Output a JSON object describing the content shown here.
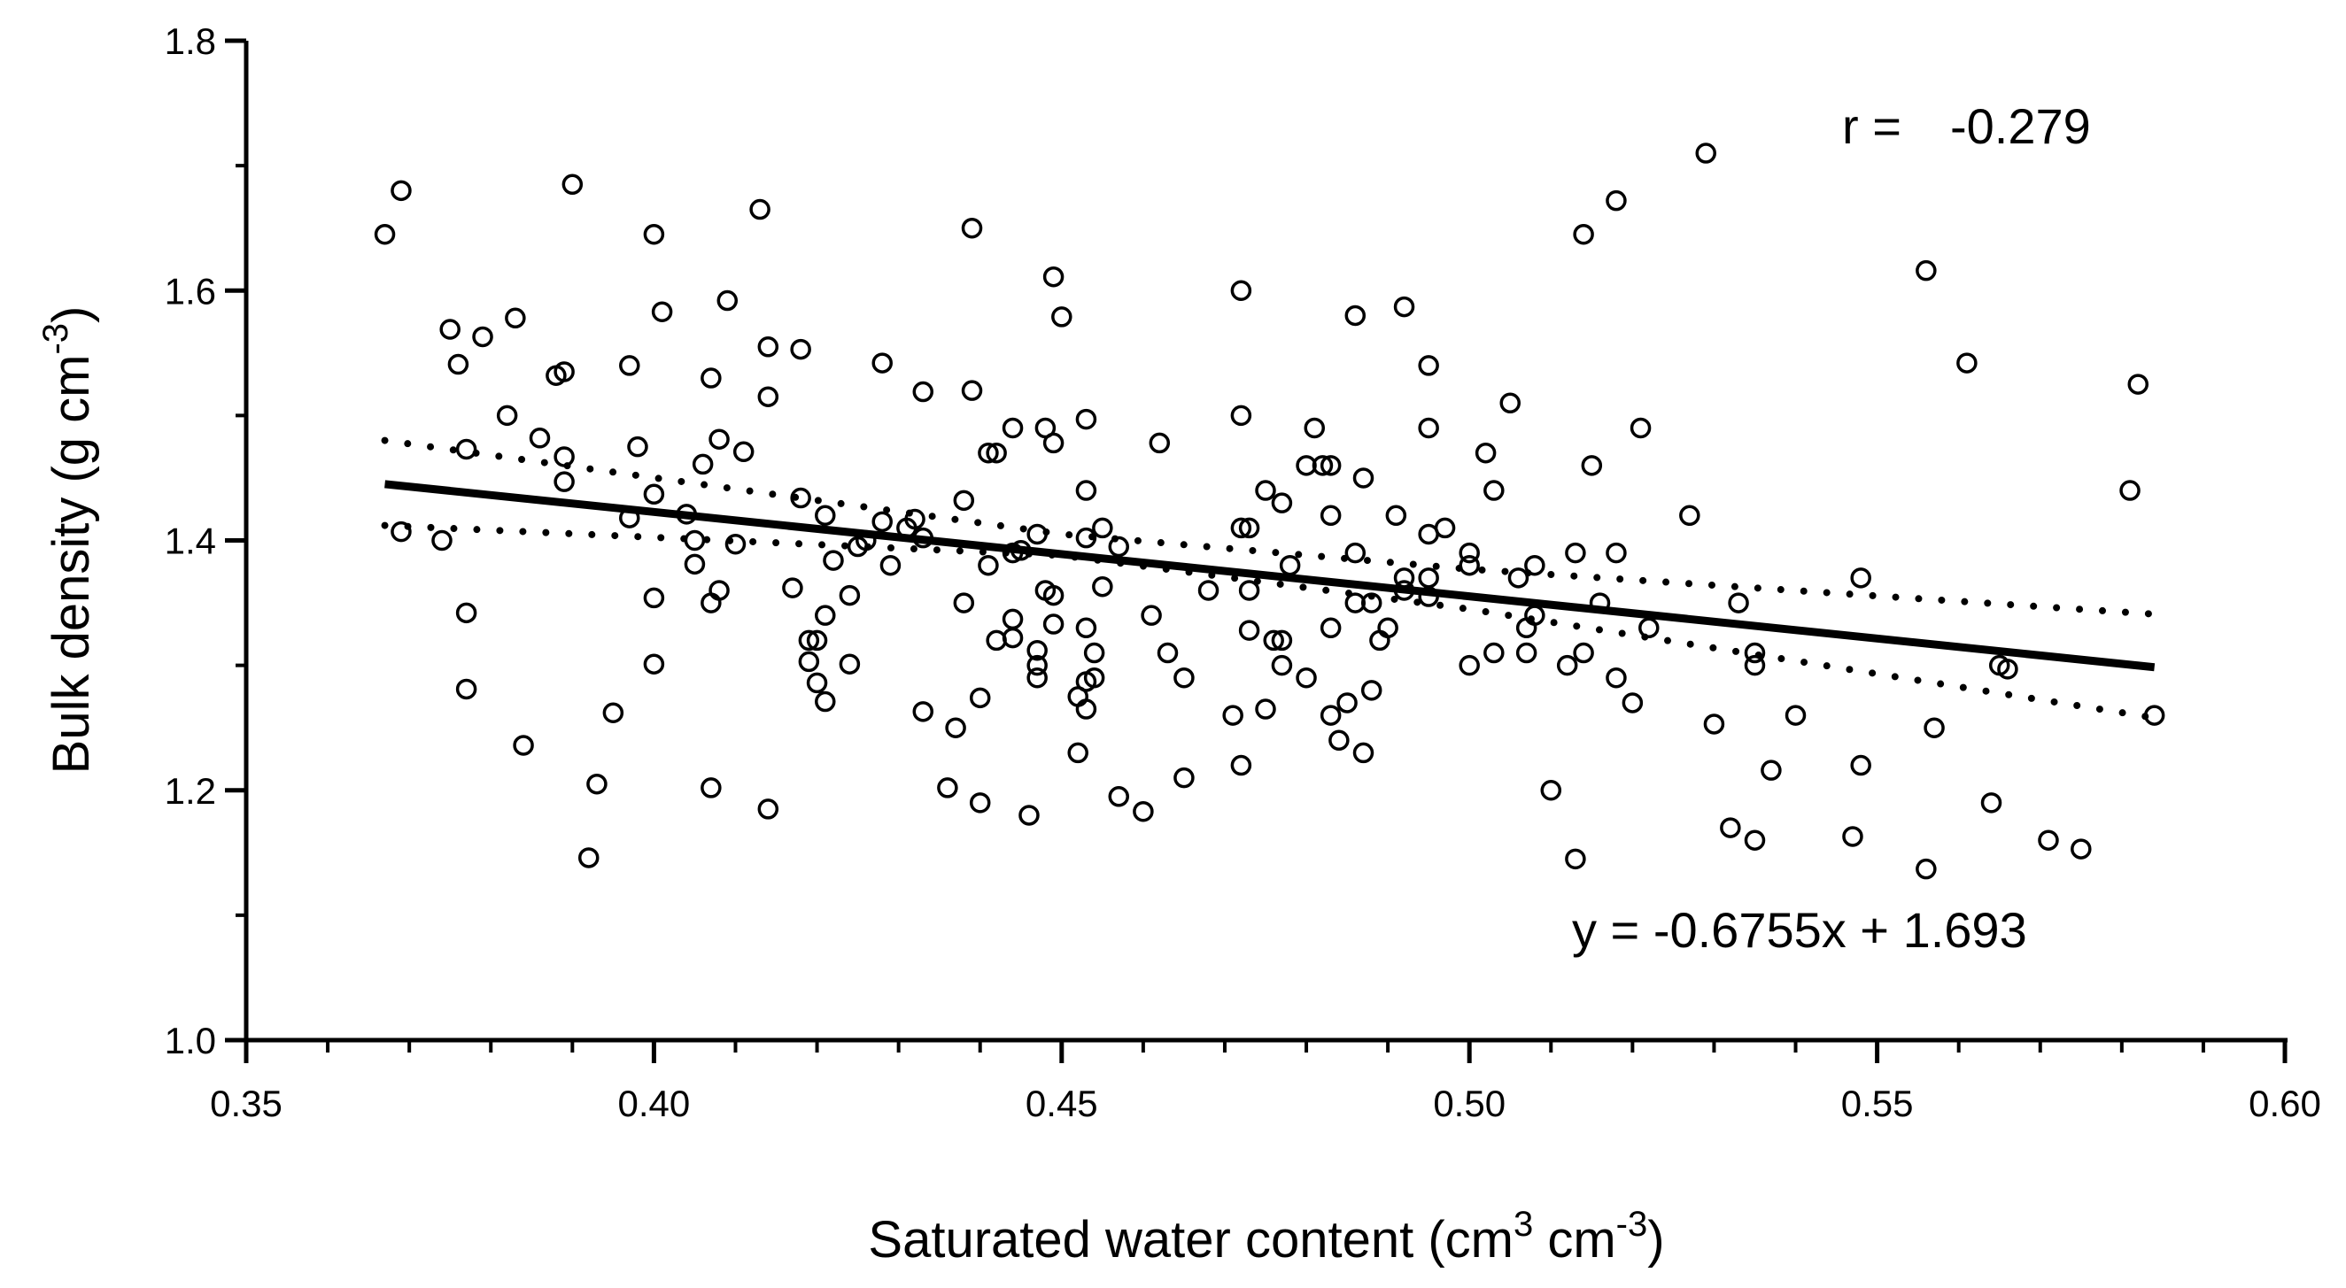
{
  "chart_data": {
    "type": "scatter",
    "xlabel": "Saturated water content (cm",
    "xlabel_sup1": "3",
    "xlabel_mid": " cm",
    "xlabel_sup2": "-3",
    "xlabel_end": ")",
    "ylabel": "Bulk density (g cm",
    "ylabel_sup": "-3",
    "ylabel_end": ")",
    "xlim": [
      0.35,
      0.6
    ],
    "ylim": [
      1.0,
      1.8
    ],
    "x_ticks": [
      0.35,
      0.4,
      0.45,
      0.5,
      0.55,
      0.6
    ],
    "x_tick_labels": [
      "0.35",
      "0.40",
      "0.45",
      "0.50",
      "0.55",
      "0.60"
    ],
    "y_ticks": [
      1.0,
      1.2,
      1.4,
      1.6,
      1.8
    ],
    "y_tick_labels": [
      "1.0",
      "1.2",
      "1.4",
      "1.6",
      "1.8"
    ],
    "grid": false,
    "r_label": "r =",
    "r_value": "-0.279",
    "equation": "y = -0.6755x + 1.693",
    "regression": {
      "slope": -0.6755,
      "intercept": 1.693,
      "x_range": [
        0.367,
        0.584
      ]
    },
    "confidence_band": {
      "upper": [
        [
          0.367,
          1.48
        ],
        [
          0.45,
          1.405
        ],
        [
          0.5,
          1.377
        ],
        [
          0.584,
          1.341
        ]
      ],
      "lower": [
        [
          0.367,
          1.412
        ],
        [
          0.45,
          1.388
        ],
        [
          0.5,
          1.345
        ],
        [
          0.584,
          1.258
        ]
      ]
    },
    "points": [
      [
        0.367,
        1.645
      ],
      [
        0.369,
        1.68
      ],
      [
        0.369,
        1.407
      ],
      [
        0.374,
        1.4
      ],
      [
        0.375,
        1.569
      ],
      [
        0.376,
        1.541
      ],
      [
        0.377,
        1.473
      ],
      [
        0.377,
        1.342
      ],
      [
        0.377,
        1.281
      ],
      [
        0.379,
        1.563
      ],
      [
        0.382,
        1.5
      ],
      [
        0.383,
        1.578
      ],
      [
        0.384,
        1.236
      ],
      [
        0.386,
        1.482
      ],
      [
        0.388,
        1.532
      ],
      [
        0.389,
        1.535
      ],
      [
        0.389,
        1.467
      ],
      [
        0.389,
        1.447
      ],
      [
        0.39,
        1.685
      ],
      [
        0.392,
        1.146
      ],
      [
        0.393,
        1.205
      ],
      [
        0.395,
        1.262
      ],
      [
        0.397,
        1.54
      ],
      [
        0.397,
        1.418
      ],
      [
        0.398,
        1.475
      ],
      [
        0.4,
        1.645
      ],
      [
        0.4,
        1.437
      ],
      [
        0.4,
        1.354
      ],
      [
        0.4,
        1.301
      ],
      [
        0.401,
        1.583
      ],
      [
        0.404,
        1.421
      ],
      [
        0.405,
        1.4
      ],
      [
        0.405,
        1.381
      ],
      [
        0.406,
        1.461
      ],
      [
        0.407,
        1.53
      ],
      [
        0.407,
        1.35
      ],
      [
        0.407,
        1.202
      ],
      [
        0.408,
        1.36
      ],
      [
        0.408,
        1.481
      ],
      [
        0.409,
        1.592
      ],
      [
        0.41,
        1.397
      ],
      [
        0.411,
        1.471
      ],
      [
        0.413,
        1.665
      ],
      [
        0.414,
        1.555
      ],
      [
        0.414,
        1.515
      ],
      [
        0.414,
        1.185
      ],
      [
        0.417,
        1.362
      ],
      [
        0.418,
        1.553
      ],
      [
        0.418,
        1.434
      ],
      [
        0.419,
        1.32
      ],
      [
        0.419,
        1.303
      ],
      [
        0.42,
        1.32
      ],
      [
        0.42,
        1.286
      ],
      [
        0.421,
        1.42
      ],
      [
        0.421,
        1.34
      ],
      [
        0.421,
        1.271
      ],
      [
        0.422,
        1.384
      ],
      [
        0.424,
        1.356
      ],
      [
        0.424,
        1.301
      ],
      [
        0.425,
        1.395
      ],
      [
        0.426,
        1.4
      ],
      [
        0.428,
        1.542
      ],
      [
        0.428,
        1.415
      ],
      [
        0.429,
        1.38
      ],
      [
        0.431,
        1.41
      ],
      [
        0.432,
        1.417
      ],
      [
        0.433,
        1.519
      ],
      [
        0.433,
        1.402
      ],
      [
        0.433,
        1.263
      ],
      [
        0.436,
        1.202
      ],
      [
        0.437,
        1.25
      ],
      [
        0.438,
        1.432
      ],
      [
        0.438,
        1.35
      ],
      [
        0.439,
        1.65
      ],
      [
        0.439,
        1.52
      ],
      [
        0.44,
        1.274
      ],
      [
        0.44,
        1.19
      ],
      [
        0.441,
        1.38
      ],
      [
        0.441,
        1.47
      ],
      [
        0.442,
        1.47
      ],
      [
        0.442,
        1.32
      ],
      [
        0.444,
        1.49
      ],
      [
        0.444,
        1.39
      ],
      [
        0.444,
        1.337
      ],
      [
        0.444,
        1.322
      ],
      [
        0.445,
        1.392
      ],
      [
        0.446,
        1.18
      ],
      [
        0.447,
        1.405
      ],
      [
        0.447,
        1.312
      ],
      [
        0.447,
        1.3
      ],
      [
        0.447,
        1.29
      ],
      [
        0.448,
        1.49
      ],
      [
        0.448,
        1.36
      ],
      [
        0.449,
        1.611
      ],
      [
        0.449,
        1.478
      ],
      [
        0.449,
        1.356
      ],
      [
        0.449,
        1.333
      ],
      [
        0.45,
        1.579
      ],
      [
        0.452,
        1.23
      ],
      [
        0.452,
        1.275
      ],
      [
        0.453,
        1.497
      ],
      [
        0.453,
        1.44
      ],
      [
        0.453,
        1.402
      ],
      [
        0.453,
        1.33
      ],
      [
        0.453,
        1.287
      ],
      [
        0.453,
        1.265
      ],
      [
        0.454,
        1.31
      ],
      [
        0.454,
        1.29
      ],
      [
        0.455,
        1.41
      ],
      [
        0.455,
        1.363
      ],
      [
        0.457,
        1.195
      ],
      [
        0.457,
        1.395
      ],
      [
        0.46,
        1.183
      ],
      [
        0.461,
        1.34
      ],
      [
        0.462,
        1.478
      ],
      [
        0.463,
        1.31
      ],
      [
        0.465,
        1.29
      ],
      [
        0.465,
        1.21
      ],
      [
        0.468,
        1.36
      ],
      [
        0.471,
        1.26
      ],
      [
        0.472,
        1.6
      ],
      [
        0.472,
        1.5
      ],
      [
        0.472,
        1.41
      ],
      [
        0.472,
        1.22
      ],
      [
        0.473,
        1.36
      ],
      [
        0.473,
        1.41
      ],
      [
        0.473,
        1.328
      ],
      [
        0.475,
        1.44
      ],
      [
        0.475,
        1.265
      ],
      [
        0.476,
        1.32
      ],
      [
        0.477,
        1.43
      ],
      [
        0.477,
        1.32
      ],
      [
        0.477,
        1.3
      ],
      [
        0.478,
        1.38
      ],
      [
        0.48,
        1.46
      ],
      [
        0.48,
        1.29
      ],
      [
        0.481,
        1.49
      ],
      [
        0.482,
        1.46
      ],
      [
        0.483,
        1.46
      ],
      [
        0.483,
        1.42
      ],
      [
        0.483,
        1.33
      ],
      [
        0.483,
        1.26
      ],
      [
        0.484,
        1.24
      ],
      [
        0.485,
        1.27
      ],
      [
        0.486,
        1.58
      ],
      [
        0.486,
        1.39
      ],
      [
        0.486,
        1.35
      ],
      [
        0.487,
        1.45
      ],
      [
        0.487,
        1.23
      ],
      [
        0.488,
        1.35
      ],
      [
        0.488,
        1.28
      ],
      [
        0.489,
        1.32
      ],
      [
        0.49,
        1.33
      ],
      [
        0.491,
        1.42
      ],
      [
        0.492,
        1.587
      ],
      [
        0.492,
        1.37
      ],
      [
        0.492,
        1.36
      ],
      [
        0.495,
        1.54
      ],
      [
        0.495,
        1.49
      ],
      [
        0.495,
        1.405
      ],
      [
        0.495,
        1.37
      ],
      [
        0.495,
        1.355
      ],
      [
        0.497,
        1.41
      ],
      [
        0.5,
        1.39
      ],
      [
        0.5,
        1.38
      ],
      [
        0.5,
        1.3
      ],
      [
        0.502,
        1.47
      ],
      [
        0.503,
        1.44
      ],
      [
        0.503,
        1.31
      ],
      [
        0.505,
        1.51
      ],
      [
        0.506,
        1.37
      ],
      [
        0.507,
        1.31
      ],
      [
        0.507,
        1.33
      ],
      [
        0.508,
        1.38
      ],
      [
        0.508,
        1.34
      ],
      [
        0.51,
        1.2
      ],
      [
        0.512,
        1.3
      ],
      [
        0.513,
        1.39
      ],
      [
        0.513,
        1.145
      ],
      [
        0.514,
        1.645
      ],
      [
        0.514,
        1.31
      ],
      [
        0.515,
        1.46
      ],
      [
        0.516,
        1.35
      ],
      [
        0.518,
        1.672
      ],
      [
        0.518,
        1.39
      ],
      [
        0.518,
        1.29
      ],
      [
        0.52,
        1.27
      ],
      [
        0.521,
        1.49
      ],
      [
        0.522,
        1.33
      ],
      [
        0.527,
        1.42
      ],
      [
        0.529,
        1.71
      ],
      [
        0.53,
        1.253
      ],
      [
        0.532,
        1.17
      ],
      [
        0.533,
        1.35
      ],
      [
        0.535,
        1.31
      ],
      [
        0.535,
        1.3
      ],
      [
        0.535,
        1.16
      ],
      [
        0.537,
        1.216
      ],
      [
        0.54,
        1.26
      ],
      [
        0.547,
        1.163
      ],
      [
        0.548,
        1.37
      ],
      [
        0.548,
        1.22
      ],
      [
        0.556,
        1.616
      ],
      [
        0.556,
        1.137
      ],
      [
        0.557,
        1.25
      ],
      [
        0.561,
        1.542
      ],
      [
        0.564,
        1.19
      ],
      [
        0.565,
        1.3
      ],
      [
        0.566,
        1.297
      ],
      [
        0.571,
        1.16
      ],
      [
        0.575,
        1.153
      ],
      [
        0.581,
        1.44
      ],
      [
        0.582,
        1.525
      ],
      [
        0.584,
        1.26
      ]
    ]
  }
}
